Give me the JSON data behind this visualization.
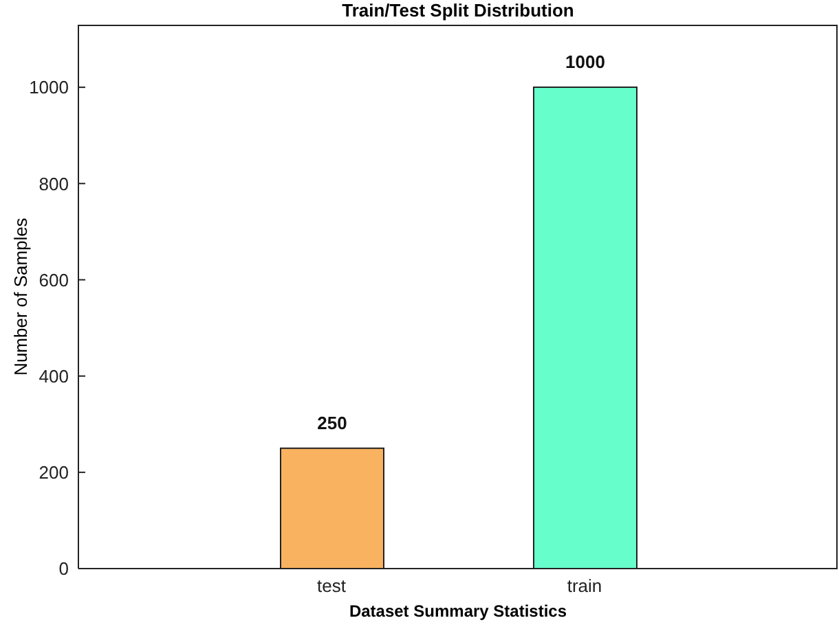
{
  "chart_data": {
    "type": "bar",
    "title": "Train/Test Split Distribution",
    "xlabel": "Dataset Summary Statistics",
    "ylabel": "Number of Samples",
    "categories": [
      "test",
      "train"
    ],
    "values": [
      250,
      1000
    ],
    "colors": [
      "#f9b25f",
      "#66ffcc"
    ],
    "ylim": [
      0,
      1130
    ],
    "yticks": [
      0,
      200,
      400,
      600,
      800,
      1000
    ],
    "data_labels": true
  }
}
